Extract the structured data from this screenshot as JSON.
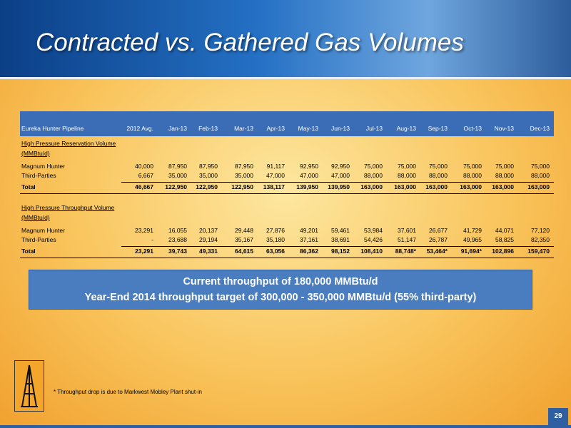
{
  "title": "Contracted vs. Gathered Gas Volumes",
  "table": {
    "columns": [
      "Eureka Hunter Pipeline",
      "2012 Avg.",
      "Jan-13",
      "Feb-13",
      "Mar-13",
      "Apr-13",
      "May-13",
      "Jun-13",
      "Jul-13",
      "Aug-13",
      "Sep-13",
      "Oct-13",
      "Nov-13",
      "Dec-13"
    ],
    "sections": [
      {
        "heading": [
          "High Pressure Reservation Volume",
          "(MMBtu/d)"
        ],
        "rows": [
          [
            "Magnum Hunter",
            "40,000",
            "87,950",
            "87,950",
            "87,950",
            "91,117",
            "92,950",
            "92,950",
            "75,000",
            "75,000",
            "75,000",
            "75,000",
            "75,000",
            "75,000"
          ],
          [
            "Third-Parties",
            "6,667",
            "35,000",
            "35,000",
            "35,000",
            "47,000",
            "47,000",
            "47,000",
            "88,000",
            "88,000",
            "88,000",
            "88,000",
            "88,000",
            "88,000"
          ],
          [
            "Total",
            "46,667",
            "122,950",
            "122,950",
            "122,950",
            "138,117",
            "139,950",
            "139,950",
            "163,000",
            "163,000",
            "163,000",
            "163,000",
            "163,000",
            "163,000"
          ]
        ]
      },
      {
        "heading": [
          "High Pressure Throughput Volume",
          "(MMBtu/d)"
        ],
        "rows": [
          [
            "Magnum Hunter",
            "23,291",
            "16,055",
            "20,137",
            "29,448",
            "27,876",
            "49,201",
            "59,461",
            "53,984",
            "37,601",
            "26,677",
            "41,729",
            "44,071",
            "77,120"
          ],
          [
            "Third-Parties",
            "-",
            "23,688",
            "29,194",
            "35,167",
            "35,180",
            "37,161",
            "38,691",
            "54,426",
            "51,147",
            "26,787",
            "49,965",
            "58,825",
            "82,350"
          ],
          [
            "Total",
            "23,291",
            "39,743",
            "49,331",
            "64,615",
            "63,056",
            "86,362",
            "98,152",
            "108,410",
            "88,748*",
            "53,464*",
            "91,694*",
            "102,896",
            "159,470"
          ]
        ]
      }
    ]
  },
  "callout": [
    "Current throughput of 180,000 MMBtu/d",
    "Year-End 2014 throughput target of 300,000 - 350,000 MMBtu/d (55% third-party)"
  ],
  "footnote": "* Throughput drop is  due to Markwest Mobley Plant shut-in",
  "page_number": "29"
}
